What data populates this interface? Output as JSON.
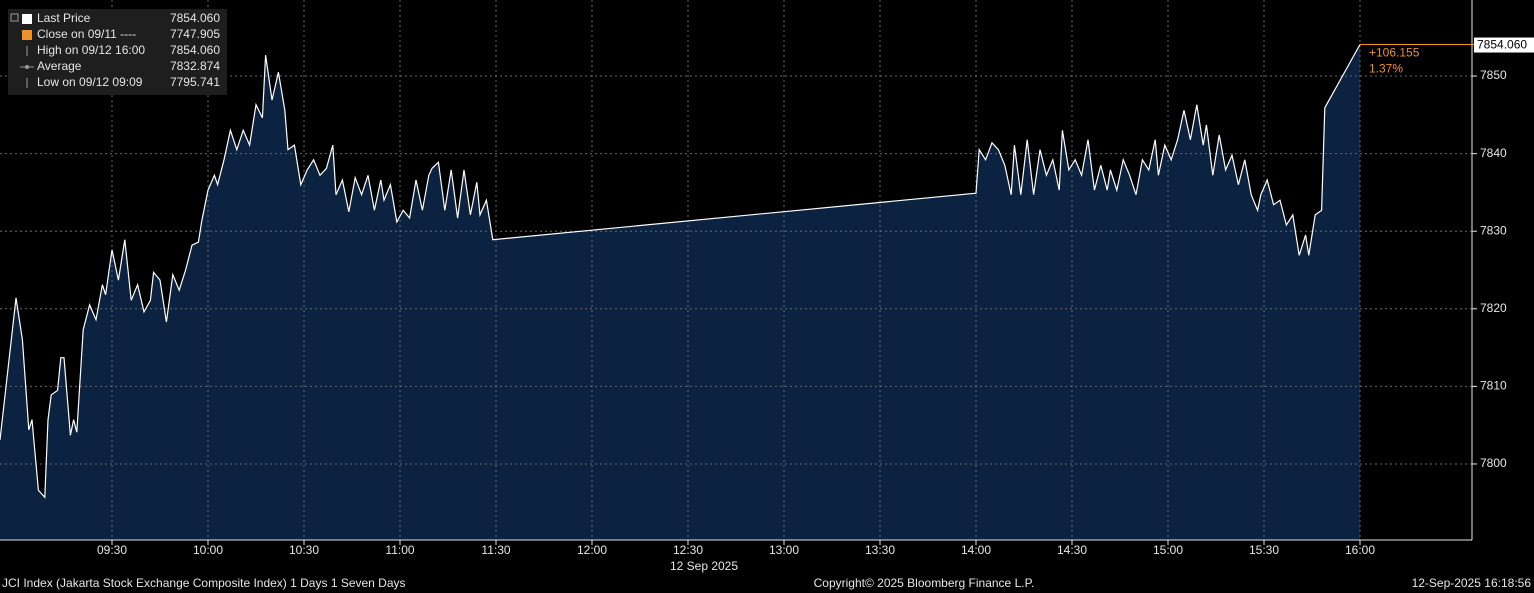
{
  "chart_data": {
    "type": "area",
    "x": [
      "08:55",
      "09:00",
      "09:02",
      "09:04",
      "09:05",
      "09:07",
      "09:09",
      "09:10",
      "09:11",
      "09:13",
      "09:14",
      "09:15",
      "09:17",
      "09:18",
      "09:19",
      "09:21",
      "09:23",
      "09:25",
      "09:27",
      "09:28",
      "09:30",
      "09:32",
      "09:34",
      "09:36",
      "09:38",
      "09:40",
      "09:42",
      "09:43",
      "09:45",
      "09:47",
      "09:49",
      "09:51",
      "09:53",
      "09:55",
      "09:57",
      "09:58",
      "10:00",
      "10:02",
      "10:03",
      "10:05",
      "10:07",
      "10:09",
      "10:11",
      "10:13",
      "10:15",
      "10:17",
      "10:18",
      "10:20",
      "10:22",
      "10:24",
      "10:25",
      "10:27",
      "10:29",
      "10:31",
      "10:33",
      "10:35",
      "10:37",
      "10:39",
      "10:40",
      "10:42",
      "10:44",
      "10:46",
      "10:48",
      "10:50",
      "10:52",
      "10:54",
      "10:55",
      "10:57",
      "10:59",
      "11:01",
      "11:03",
      "11:05",
      "11:07",
      "11:09",
      "11:10",
      "11:12",
      "11:14",
      "11:16",
      "11:18",
      "11:20",
      "11:22",
      "11:24",
      "11:25",
      "11:27",
      "11:29",
      "14:00",
      "14:01",
      "14:03",
      "14:05",
      "14:07",
      "14:09",
      "14:11",
      "14:12",
      "14:14",
      "14:16",
      "14:18",
      "14:20",
      "14:22",
      "14:24",
      "14:26",
      "14:27",
      "14:29",
      "14:31",
      "14:33",
      "14:35",
      "14:37",
      "14:39",
      "14:41",
      "14:42",
      "14:44",
      "14:46",
      "14:48",
      "14:50",
      "14:52",
      "14:54",
      "14:56",
      "14:57",
      "14:59",
      "15:01",
      "15:03",
      "15:05",
      "15:07",
      "15:09",
      "15:11",
      "15:12",
      "15:14",
      "15:16",
      "15:18",
      "15:20",
      "15:22",
      "15:24",
      "15:26",
      "15:28",
      "15:29",
      "15:31",
      "15:33",
      "15:35",
      "15:37",
      "15:39",
      "15:41",
      "15:43",
      "15:44",
      "15:46",
      "15:48",
      "15:49",
      "16:00"
    ],
    "series": [
      {
        "name": "Last Price",
        "color": "#ffffff",
        "fill": "#0b2240",
        "values": [
          7803.1,
          7821.4,
          7816.0,
          7804.4,
          7805.7,
          7796.6,
          7795.7,
          7805.7,
          7808.9,
          7809.5,
          7813.7,
          7813.7,
          7803.7,
          7805.7,
          7804.1,
          7817.3,
          7820.5,
          7818.6,
          7823.1,
          7821.8,
          7827.6,
          7823.7,
          7828.9,
          7821.1,
          7823.1,
          7819.6,
          7821.1,
          7824.7,
          7823.7,
          7818.3,
          7824.4,
          7822.4,
          7825.0,
          7828.2,
          7828.6,
          7831.2,
          7835.3,
          7837.2,
          7836.0,
          7839.2,
          7843.0,
          7840.5,
          7843.0,
          7841.1,
          7846.3,
          7844.6,
          7852.7,
          7846.9,
          7850.5,
          7845.6,
          7840.5,
          7841.1,
          7836.0,
          7837.9,
          7839.2,
          7837.2,
          7838.1,
          7841.1,
          7834.7,
          7836.6,
          7832.5,
          7836.9,
          7834.7,
          7837.2,
          7832.7,
          7836.6,
          7834.0,
          7836.0,
          7831.2,
          7832.7,
          7831.7,
          7836.6,
          7832.7,
          7837.2,
          7838.1,
          7838.9,
          7832.7,
          7837.9,
          7831.7,
          7837.9,
          7832.1,
          7836.3,
          7832.1,
          7834.0,
          7828.9,
          7834.9,
          7840.5,
          7839.2,
          7841.4,
          7840.5,
          7838.5,
          7834.7,
          7841.1,
          7834.7,
          7841.8,
          7834.7,
          7840.5,
          7837.2,
          7839.2,
          7835.3,
          7843.0,
          7837.9,
          7839.2,
          7837.2,
          7841.8,
          7835.3,
          7838.5,
          7835.3,
          7837.9,
          7835.3,
          7839.2,
          7837.2,
          7834.7,
          7839.2,
          7837.9,
          7841.8,
          7837.2,
          7841.1,
          7839.2,
          7841.8,
          7845.6,
          7841.8,
          7846.3,
          7841.1,
          7843.7,
          7837.2,
          7842.4,
          7837.9,
          7839.8,
          7836.0,
          7839.2,
          7834.7,
          7832.7,
          7834.7,
          7836.6,
          7833.4,
          7834.0,
          7830.8,
          7832.1,
          7826.9,
          7829.5,
          7826.9,
          7832.1,
          7832.7,
          7845.9,
          7854.06
        ]
      }
    ],
    "xlim": [
      "08:55",
      "16:35"
    ],
    "xticks": [
      "09:30",
      "10:00",
      "10:30",
      "11:00",
      "11:30",
      "12:00",
      "12:30",
      "13:00",
      "13:30",
      "14:00",
      "14:30",
      "15:00",
      "15:30",
      "16:00"
    ],
    "x_axis_date": "12 Sep 2025",
    "ylim": [
      7790.2,
      7859.8
    ],
    "yticks": [
      7800,
      7810,
      7820,
      7830,
      7840,
      7850
    ],
    "grid": true,
    "legend": [
      {
        "name": "Last Price",
        "value": 7854.06,
        "label": "7854.060",
        "color": "#ffffff"
      },
      {
        "name": "Close on 09/11 ----",
        "value": 7747.905,
        "label": "7747.905",
        "color": "#f0902a"
      },
      {
        "name": "High on 09/12 16:00",
        "value": 7854.06,
        "label": "7854.060",
        "color": "#9a9a9a"
      },
      {
        "name": "Average",
        "value": 7832.874,
        "label": "7832.874",
        "color": "#9a9a9a"
      },
      {
        "name": "Low on 09/12 09:09",
        "value": 7795.741,
        "label": "7795.741",
        "color": "#9a9a9a"
      }
    ],
    "last_price_tag": {
      "value": 7854.06,
      "label": "7854.060"
    },
    "change": {
      "value": 106.155,
      "label": "+106.155"
    },
    "change_pct": {
      "value": 1.37,
      "label": "1.37%"
    },
    "annotation_color": "#f0902a",
    "footer": {
      "security": "JCI Index (Jakarta Stock Exchange Composite Index) 1 Days 1 Seven Days",
      "copyright": "Copyright© 2025 Bloomberg Finance L.P.",
      "timestamp": "12-Sep-2025 16:18:56"
    }
  }
}
